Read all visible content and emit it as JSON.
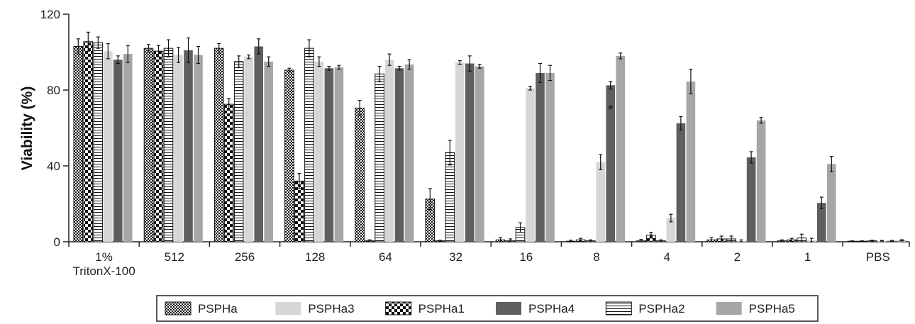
{
  "chart_data": {
    "type": "bar",
    "title": "",
    "xlabel": "",
    "ylabel": "Viability (%)",
    "ylim": [
      0,
      120
    ],
    "yticks": [
      "0",
      "40",
      "80",
      "120"
    ],
    "categories": [
      "1%\nTritonX-100",
      "512",
      "256",
      "128",
      "64",
      "32",
      "16",
      "8",
      "4",
      "2",
      "1",
      "PBS"
    ],
    "grid": false,
    "legend_position": "bottom",
    "legend_order": [
      "PSPHa",
      "PSPHa3",
      "PSPHa1",
      "PSPHa4",
      "PSPHa2",
      "PSPHa5"
    ],
    "series": [
      {
        "name": "PSPHa",
        "style": "fine-check",
        "color": "#ffffff",
        "values": [
          103,
          102,
          102,
          90.5,
          70.5,
          22.5,
          1,
          0.3,
          0.5,
          1,
          0.5,
          0.3
        ],
        "errors": [
          4,
          2,
          2.5,
          1,
          4,
          5.5,
          1.2,
          0.5,
          0.8,
          1.2,
          0.5,
          0.2
        ]
      },
      {
        "name": "PSPHa1",
        "style": "coarse-check",
        "color": "#ffffff",
        "values": [
          105.5,
          100.5,
          72.5,
          32,
          0.5,
          0.5,
          0.5,
          1,
          3.5,
          1.5,
          1,
          0.3
        ],
        "errors": [
          5,
          3,
          3,
          4,
          0.5,
          0.3,
          1,
          0.8,
          1.5,
          1.5,
          0.8,
          0.2
        ]
      },
      {
        "name": "PSPHa2",
        "style": "horizontal-lines",
        "color": "#ffffff",
        "values": [
          105,
          102,
          95,
          102,
          88.5,
          47,
          7.5,
          0.5,
          0.5,
          1.5,
          2,
          0.5
        ],
        "errors": [
          3,
          4.5,
          3,
          4.5,
          4,
          6.5,
          2.5,
          0.5,
          0.5,
          1.5,
          2,
          0.3
        ]
      },
      {
        "name": "PSPHa3",
        "style": "solid",
        "color": "#d6d6d6",
        "values": [
          100.5,
          98.5,
          97.5,
          95,
          96,
          94.5,
          81,
          42,
          12.5,
          0.5,
          0.8,
          0.5
        ],
        "errors": [
          4,
          4,
          1,
          2.5,
          3,
          1,
          1,
          4,
          2,
          0.5,
          1,
          0.2
        ]
      },
      {
        "name": "PSPHa4",
        "style": "solid",
        "color": "#5f5f5f",
        "values": [
          96,
          101,
          103,
          91.5,
          91.5,
          94,
          89,
          82.5,
          62.5,
          44.5,
          20.5,
          0.5
        ],
        "errors": [
          2,
          6.5,
          4,
          1,
          1,
          4,
          5,
          2,
          3.5,
          3,
          3,
          0.2
        ]
      },
      {
        "name": "PSPHa5",
        "style": "solid",
        "color": "#a6a6a6",
        "values": [
          99,
          98.5,
          95,
          92,
          93.5,
          92.5,
          89,
          98,
          84.5,
          64,
          41,
          0.8
        ],
        "errors": [
          4.5,
          4.5,
          2.5,
          1,
          2.5,
          1,
          4,
          1.5,
          6.5,
          1.5,
          4,
          0.3
        ]
      }
    ],
    "annotations": [
      {
        "text": "*",
        "category": "8",
        "series": "PSPHa4",
        "y": 71
      }
    ]
  }
}
